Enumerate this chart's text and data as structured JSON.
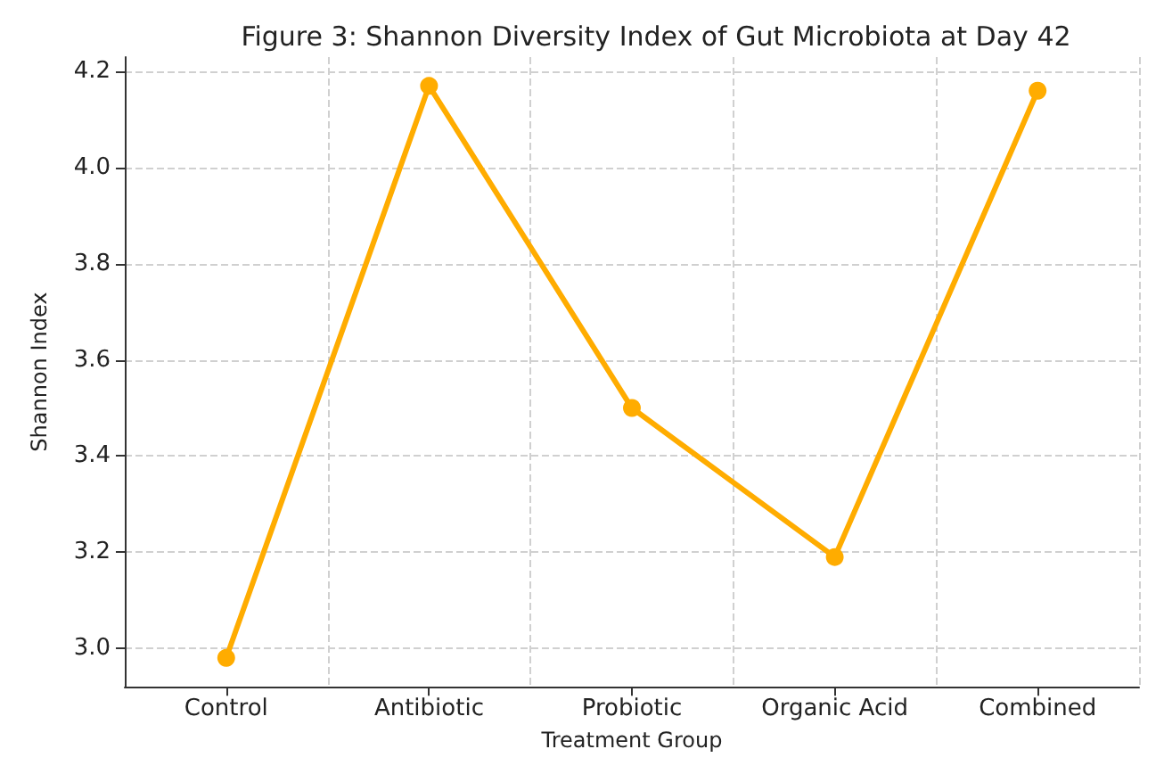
{
  "chart_data": {
    "type": "line",
    "title": "Figure 3: Shannon Diversity Index of Gut Microbiota at Day 42",
    "xlabel": "Treatment Group",
    "ylabel": "Shannon Index",
    "categories": [
      "Control",
      "Antibiotic",
      "Probiotic",
      "Organic Acid",
      "Combined"
    ],
    "series": [
      {
        "color": "#ffac00",
        "values": [
          2.98,
          4.17,
          3.5,
          3.19,
          4.16
        ]
      }
    ],
    "ylim": [
      2.92,
      4.23
    ],
    "yticks": [
      {
        "value": 3.0,
        "label": "3.0"
      },
      {
        "value": 3.2,
        "label": "3.2"
      },
      {
        "value": 3.4,
        "label": "3.4"
      },
      {
        "value": 3.6,
        "label": "3.6"
      },
      {
        "value": 3.8,
        "label": "3.8"
      },
      {
        "value": 4.0,
        "label": "4.0"
      },
      {
        "value": 4.2,
        "label": "4.2"
      }
    ],
    "grid": true,
    "marker": "circle",
    "line_style": "solid"
  }
}
